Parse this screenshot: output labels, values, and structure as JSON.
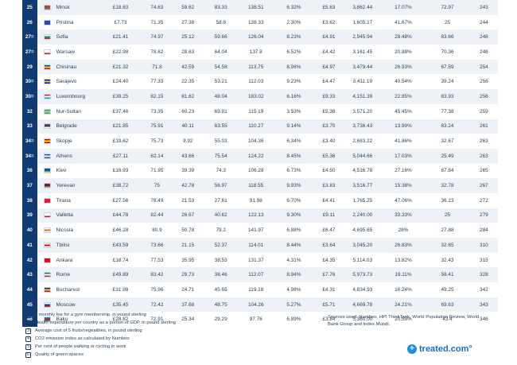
{
  "rows": [
    {
      "rank": "25",
      "city": "Minsk",
      "c1": "£18.63",
      "c2": "74.63",
      "c3": "59.62",
      "c4": "83.33",
      "c5": "138.51",
      "c6": "6.32%",
      "c7": "£5.63",
      "c8": "3,862.44",
      "c9": "17.07%",
      "c10": "72.97",
      "c11": "243",
      "flag": [
        "#c8313e",
        "#c8313e",
        "#4aa657"
      ]
    },
    {
      "rank": "26",
      "city": "Pristina",
      "c1": "£7.73",
      "c2": "71.35",
      "c3": "27.38",
      "c4": "58.8",
      "c5": "138.33",
      "c6": "2.30%",
      "c7": "£3.62",
      "c8": "1,605.17",
      "c9": "41.67%",
      "c10": "25",
      "c11": "244",
      "flag": [
        "#244aa5",
        "#244aa5",
        "#244aa5"
      ]
    },
    {
      "rank": "27=",
      "city": "Sofia",
      "c1": "£21.41",
      "c2": "74.97",
      "c3": "25.12",
      "c4": "59.66",
      "c5": "126.04",
      "c6": "8.23%",
      "c7": "£4.91",
      "c8": "2,945.94",
      "c9": "28.48%",
      "c10": "63.66",
      "c11": "248",
      "flag": [
        "#ffffff",
        "#00966e",
        "#d62612"
      ]
    },
    {
      "rank": "27=",
      "city": "Warsaw",
      "c1": "£22.98",
      "c2": "78.62",
      "c3": "28.63",
      "c4": "64.04",
      "c5": "137.8",
      "c6": "6.52%",
      "c7": "£4.42",
      "c8": "3,161.45",
      "c9": "20.88%",
      "c10": "70.36",
      "c11": "248",
      "flag": [
        "#ffffff",
        "#ffffff",
        "#dc143c"
      ]
    },
    {
      "rank": "29",
      "city": "Chisinau",
      "c1": "£21.32",
      "c2": "71.8",
      "c3": "42.59",
      "c4": "54.58",
      "c5": "113.75",
      "c6": "8.98%",
      "c7": "£4.97",
      "c8": "3,479.44",
      "c9": "26.93%",
      "c10": "67.59",
      "c11": "254",
      "flag": [
        "#0046ae",
        "#ffd200",
        "#cc092f"
      ]
    },
    {
      "rank": "30=",
      "city": "Sarajevo",
      "c1": "£24.40",
      "c2": "77.33",
      "c3": "22.35",
      "c4": "53.21",
      "c5": "112.03",
      "c6": "9.23%",
      "c7": "£4.47",
      "c8": "3,411.19",
      "c9": "40.54%",
      "c10": "39.24",
      "c11": "256",
      "flag": [
        "#002395",
        "#fecb00",
        "#002395"
      ]
    },
    {
      "rank": "30=",
      "city": "Luxembourg",
      "c1": "£39.25",
      "c2": "82.15",
      "c3": "81.62",
      "c4": "48.04",
      "c5": "183.02",
      "c6": "6.16%",
      "c7": "£9.33",
      "c8": "4,151.39",
      "c9": "22.85%",
      "c10": "83.93",
      "c11": "256",
      "flag": [
        "#ed2939",
        "#ffffff",
        "#00a1de"
      ]
    },
    {
      "rank": "32",
      "city": "Nur-Sultan",
      "c1": "£37.46",
      "c2": "73.35",
      "c3": "60.23",
      "c4": "69.81",
      "c5": "115.19",
      "c6": "3.53%",
      "c7": "£5.38",
      "c8": "3,571.20",
      "c9": "45.45%",
      "c10": "77.38",
      "c11": "259",
      "flag": [
        "#00afca",
        "#fec50c",
        "#00afca"
      ]
    },
    {
      "rank": "33",
      "city": "Belgrade",
      "c1": "£21.85",
      "c2": "75.91",
      "c3": "40.11",
      "c4": "63.55",
      "c5": "110.27",
      "c6": "9.14%",
      "c7": "£3.70",
      "c8": "3,738.43",
      "c9": "13.99%",
      "c10": "63.24",
      "c11": "261",
      "flag": [
        "#c6363c",
        "#0c4076",
        "#ffffff"
      ]
    },
    {
      "rank": "34=",
      "city": "Skopje",
      "c1": "£19.62",
      "c2": "75.73",
      "c3": "9.92",
      "c4": "55.03",
      "c5": "104.36",
      "c6": "6.34%",
      "c7": "£3.40",
      "c8": "2,683.22",
      "c9": "41.86%",
      "c10": "32.67",
      "c11": "263",
      "flag": [
        "#d20000",
        "#ffe600",
        "#d20000"
      ]
    },
    {
      "rank": "34=",
      "city": "Athens",
      "c1": "£27.11",
      "c2": "82.14",
      "c3": "43.66",
      "c4": "75.54",
      "c5": "124.22",
      "c6": "8.45%",
      "c7": "£5.36",
      "c8": "5,044.66",
      "c9": "17.03%",
      "c10": "25.49",
      "c11": "263",
      "flag": [
        "#0d5eaf",
        "#ffffff",
        "#0d5eaf"
      ]
    },
    {
      "rank": "36",
      "city": "Kiev",
      "c1": "£16.93",
      "c2": "71.95",
      "c3": "39.39",
      "c4": "74.3",
      "c5": "106.28",
      "c6": "6.73%",
      "c7": "£4.50",
      "c8": "4,516.78",
      "c9": "27.16%",
      "c10": "67.84",
      "c11": "265",
      "flag": [
        "#0057b7",
        "#0057b7",
        "#ffd700"
      ]
    },
    {
      "rank": "37",
      "city": "Yerevan",
      "c1": "£38.72",
      "c2": "75",
      "c3": "42.78",
      "c4": "56.97",
      "c5": "118.55",
      "c6": "9.93%",
      "c7": "£3.83",
      "c8": "3,516.77",
      "c9": "15.38%",
      "c10": "32.78",
      "c11": "267",
      "flag": [
        "#d90012",
        "#0033a0",
        "#f2a800"
      ]
    },
    {
      "rank": "38",
      "city": "Tirana",
      "c1": "£27.56",
      "c2": "78.49",
      "c3": "21.53",
      "c4": "27.61",
      "c5": "91.98",
      "c6": "6.70%",
      "c7": "£4.41",
      "c8": "1,765.25",
      "c9": "47.06%",
      "c10": "36.23",
      "c11": "272",
      "flag": [
        "#e41e20",
        "#e41e20",
        "#e41e20"
      ]
    },
    {
      "rank": "39",
      "city": "Valletta",
      "c1": "£44.78",
      "c2": "82.44",
      "c3": "26.67",
      "c4": "40.62",
      "c5": "122.13",
      "c6": "9.30%",
      "c7": "£9.11",
      "c8": "2,240.00",
      "c9": "33.33%",
      "c10": "25",
      "c11": "279",
      "flag": [
        "#ffffff",
        "#ffffff",
        "#cf142b"
      ]
    },
    {
      "rank": "40",
      "city": "Nicosia",
      "c1": "£46.28",
      "c2": "80.9",
      "c3": "50.78",
      "c4": "79.2",
      "c5": "141.97",
      "c6": "6.88%",
      "c7": "£6.47",
      "c8": "4,695.65",
      "c9": "28%",
      "c10": "27.88",
      "c11": "284",
      "flag": [
        "#ffffff",
        "#d57800",
        "#ffffff"
      ]
    },
    {
      "rank": "41",
      "city": "Tbilisi",
      "c1": "£43.59",
      "c2": "73.66",
      "c3": "21.15",
      "c4": "52.37",
      "c5": "114.01",
      "c6": "8.44%",
      "c7": "£3.64",
      "c8": "3,045.20",
      "c9": "26.83%",
      "c10": "32.65",
      "c11": "310",
      "flag": [
        "#ffffff",
        "#ff0000",
        "#ffffff"
      ]
    },
    {
      "rank": "42",
      "city": "Ankara",
      "c1": "£18.74",
      "c2": "77.53",
      "c3": "35.95",
      "c4": "38.53",
      "c5": "131.37",
      "c6": "4.31%",
      "c7": "£4.35",
      "c8": "5,114.03",
      "c9": "13.82%",
      "c10": "32.43",
      "c11": "315",
      "flag": [
        "#e30a17",
        "#e30a17",
        "#e30a17"
      ]
    },
    {
      "rank": "43",
      "city": "Rome",
      "c1": "£49.89",
      "c2": "83.42",
      "c3": "29.73",
      "c4": "38.46",
      "c5": "112.07",
      "c6": "8.94%",
      "c7": "£7.76",
      "c8": "5,973.73",
      "c9": "19.11%",
      "c10": "58.41",
      "c11": "328",
      "flag": [
        "#009246",
        "#ffffff",
        "#ce2b37"
      ]
    },
    {
      "rank": "44",
      "city": "Bucharest",
      "c1": "£31.98",
      "c2": "75.96",
      "c3": "24.71",
      "c4": "45.65",
      "c5": "119.18",
      "c6": "4.98%",
      "c7": "£4.31",
      "c8": "4,834.93",
      "c9": "16.24%",
      "c10": "49.25",
      "c11": "342",
      "flag": [
        "#002b7f",
        "#fcd116",
        "#ce1126"
      ]
    },
    {
      "rank": "45",
      "city": "Moscow",
      "c1": "£35.45",
      "c2": "72.42",
      "c3": "37.68",
      "c4": "48.75",
      "c5": "104.26",
      "c6": "5.27%",
      "c7": "£5.71",
      "c8": "4,669.78",
      "c9": "24.21%",
      "c10": "69.63",
      "c11": "343",
      "flag": [
        "#ffffff",
        "#0039a6",
        "#d52b1e"
      ]
    },
    {
      "rank": "46",
      "city": "Baku",
      "c1": "£28.82",
      "c2": "72.91",
      "c3": "25.34",
      "c4": "29.29",
      "c5": "97.76",
      "c6": "6.89%",
      "c7": "£3.84",
      "c8": "5,360.00",
      "c9": "20.59%",
      "c10": "43.4",
      "c11": "346",
      "flag": [
        "#0092bc",
        "#e4002b",
        "#00af66"
      ]
    }
  ],
  "legend": [
    {
      "num": "1",
      "text": "1 monthly fee for a gym membership, in pound sterling"
    },
    {
      "num": "2",
      "text": "Health expenditure per country as a portion of GDP, in pound sterling"
    },
    {
      "num": "3",
      "text": "Average cost of 5 fruits/vegeatbles, in pound sterling"
    },
    {
      "num": "4",
      "text": "CO2 emission index as calculated by Numbeo"
    },
    {
      "num": "5",
      "text": "Per cent of people walking or cycling to work"
    },
    {
      "num": "6",
      "text": "Quality of green spaces"
    }
  ],
  "sources": "Sources used: Numbeo, HPI ThinkTank, World Population Review, World Bank Group and Index Mundi.",
  "brand": {
    "icon": "+",
    "text": "treated.com°"
  },
  "colors": {
    "rank_bg": "#0d3b72",
    "brand": "#1d6fc0"
  }
}
